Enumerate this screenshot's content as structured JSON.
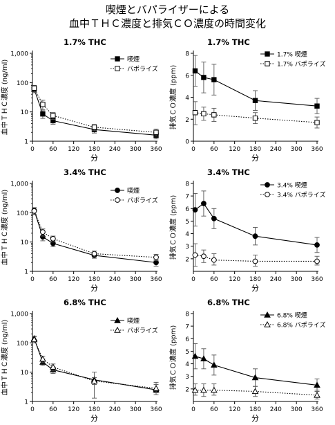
{
  "figure": {
    "title_line1": "喫煙とバパライザーによる",
    "title_line2": "血中ＴＨＣ濃度と排気ＣＯ濃度の時間変化"
  },
  "chart_data": [
    {
      "id": "thc-1-7",
      "type": "line",
      "title": "1.7% THC",
      "xlabel": "分",
      "ylabel": "血中ＴＨＣ濃度 (ng/ml)",
      "yscale": "log",
      "ylim": [
        1,
        1000
      ],
      "xlim": [
        0,
        360
      ],
      "x_ticks": [
        0,
        60,
        120,
        180,
        240,
        300,
        360
      ],
      "y_ticks": [
        1,
        10,
        100,
        1000
      ],
      "y_tick_labels": [
        "1",
        "10",
        "100",
        "1,000"
      ],
      "legend_position": "top-right",
      "series": [
        {
          "name": "喫煙",
          "marker": "filled-square",
          "line": "solid",
          "x": [
            5,
            30,
            60,
            180,
            360
          ],
          "y": [
            60,
            8.5,
            5,
            2.5,
            1.6
          ],
          "err_low": [
            45,
            6,
            3.8,
            1.9,
            1.2
          ],
          "err_high": [
            75,
            11,
            6.5,
            3.2,
            2.1
          ]
        },
        {
          "name": "バポライズ",
          "marker": "open-square",
          "line": "dotted",
          "x": [
            5,
            30,
            60,
            180,
            360
          ],
          "y": [
            65,
            18,
            7.5,
            3,
            2
          ],
          "err_low": [
            48,
            12,
            5.5,
            2.3,
            1.5
          ],
          "err_high": [
            80,
            25,
            9.5,
            3.7,
            2.6
          ]
        }
      ]
    },
    {
      "id": "co-1-7",
      "type": "line",
      "title": "1.7% THC",
      "xlabel": "分",
      "ylabel": "排気ＣＯ濃度 (ppm)",
      "ylim": [
        0,
        8
      ],
      "xlim": [
        0,
        360
      ],
      "x_ticks": [
        0,
        60,
        120,
        180,
        240,
        300,
        360
      ],
      "y_ticks": [
        0,
        2,
        4,
        6,
        8
      ],
      "legend_position": "top-right",
      "series": [
        {
          "name": "1.7% 喫煙",
          "marker": "filled-square",
          "line": "solid",
          "x": [
            5,
            30,
            60,
            180,
            360
          ],
          "y": [
            6.4,
            5.8,
            5.6,
            3.7,
            3.2
          ],
          "err_low": [
            5,
            4.4,
            4.2,
            2.8,
            2.5
          ],
          "err_high": [
            7.8,
            7.2,
            7,
            4.6,
            3.9
          ]
        },
        {
          "name": "1.7% バポライズ",
          "marker": "open-square",
          "line": "dotted",
          "x": [
            5,
            30,
            60,
            180,
            360
          ],
          "y": [
            2.6,
            2.5,
            2.4,
            2.1,
            1.7
          ],
          "err_low": [
            1.5,
            1.9,
            1.8,
            1.6,
            1.2
          ],
          "err_high": [
            3.6,
            3.1,
            3,
            2.6,
            2.2
          ]
        }
      ]
    },
    {
      "id": "thc-3-4",
      "type": "line",
      "title": "3.4% THC",
      "xlabel": "分",
      "ylabel": "血中ＴＨＣ濃度 (ng/ml)",
      "yscale": "log",
      "ylim": [
        1,
        1000
      ],
      "xlim": [
        0,
        360
      ],
      "x_ticks": [
        0,
        60,
        120,
        180,
        240,
        300,
        360
      ],
      "y_ticks": [
        1,
        10,
        100,
        1000
      ],
      "y_tick_labels": [
        "1",
        "10",
        "100",
        "1,000"
      ],
      "legend_position": "top-right",
      "series": [
        {
          "name": "喫煙",
          "marker": "filled-circle",
          "line": "solid",
          "x": [
            5,
            30,
            60,
            180,
            360
          ],
          "y": [
            120,
            15,
            9,
            3.5,
            2
          ],
          "err_low": [
            90,
            11,
            7,
            2.8,
            1.5
          ],
          "err_high": [
            150,
            20,
            11,
            4.3,
            2.6
          ]
        },
        {
          "name": "バポライズ",
          "marker": "open-circle",
          "line": "dotted",
          "x": [
            5,
            30,
            60,
            180,
            360
          ],
          "y": [
            115,
            22,
            13,
            4,
            3
          ],
          "err_low": [
            85,
            16,
            10,
            3.1,
            2.3
          ],
          "err_high": [
            145,
            28,
            16,
            4.9,
            3.8
          ]
        }
      ]
    },
    {
      "id": "co-3-4",
      "type": "line",
      "title": "3.4% THC",
      "xlabel": "分",
      "ylabel": "排気ＣＯ濃度 (ppm)",
      "ylim": [
        1,
        8
      ],
      "xlim": [
        0,
        360
      ],
      "x_ticks": [
        0,
        60,
        120,
        180,
        240,
        300,
        360
      ],
      "y_ticks": [
        2,
        3,
        4,
        5,
        6,
        7,
        8
      ],
      "legend_position": "top-right",
      "series": [
        {
          "name": "3.4% 喫煙",
          "marker": "filled-circle",
          "line": "solid",
          "x": [
            5,
            30,
            60,
            180,
            360
          ],
          "y": [
            5.9,
            6.4,
            5.2,
            3.8,
            3.1
          ],
          "err_low": [
            4.6,
            5.4,
            4.4,
            3.1,
            2.5
          ],
          "err_high": [
            7.2,
            7.4,
            6,
            4.5,
            3.7
          ]
        },
        {
          "name": "3.4% バポライズ",
          "marker": "open-circle",
          "line": "dotted",
          "x": [
            5,
            30,
            60,
            180,
            360
          ],
          "y": [
            2.3,
            2.2,
            1.9,
            1.8,
            1.8
          ],
          "err_low": [
            1.4,
            1.7,
            1.5,
            1.4,
            1.5
          ],
          "err_high": [
            3.2,
            2.7,
            2.4,
            2.3,
            2.2
          ]
        }
      ]
    },
    {
      "id": "thc-6-8",
      "type": "line",
      "title": "6.8% THC",
      "xlabel": "分",
      "ylabel": "血中ＴＨＣ濃度 (ng/ml)",
      "yscale": "log",
      "ylim": [
        1,
        1000
      ],
      "xlim": [
        0,
        360
      ],
      "x_ticks": [
        0,
        60,
        120,
        180,
        240,
        300,
        360
      ],
      "y_ticks": [
        1,
        10,
        100,
        1000
      ],
      "y_tick_labels": [
        "1",
        "10",
        "100",
        "1,000"
      ],
      "legend_position": "top-right",
      "series": [
        {
          "name": "喫煙",
          "marker": "filled-triangle",
          "line": "solid",
          "x": [
            5,
            30,
            60,
            180,
            360
          ],
          "y": [
            140,
            22,
            12,
            5.5,
            2.5
          ],
          "err_low": [
            110,
            17,
            9,
            1.3,
            1.7
          ],
          "err_high": [
            170,
            28,
            15,
            10,
            4.5
          ]
        },
        {
          "name": "バポライズ",
          "marker": "open-triangle",
          "line": "dotted",
          "x": [
            5,
            30,
            60,
            180,
            360
          ],
          "y": [
            130,
            28,
            15,
            5,
            2.8
          ],
          "err_low": [
            100,
            21,
            11,
            3.8,
            2
          ],
          "err_high": [
            160,
            35,
            19,
            6.5,
            3.8
          ]
        }
      ]
    },
    {
      "id": "co-6-8",
      "type": "line",
      "title": "6.8% THC",
      "xlabel": "分",
      "ylabel": "排気ＣＯ濃度 (ppm)",
      "ylim": [
        1,
        8
      ],
      "xlim": [
        0,
        360
      ],
      "x_ticks": [
        0,
        60,
        120,
        180,
        240,
        300,
        360
      ],
      "y_ticks": [
        2,
        3,
        4,
        5,
        6,
        7,
        8
      ],
      "legend_position": "top-right",
      "series": [
        {
          "name": "6.8% 喫煙",
          "marker": "filled-triangle",
          "line": "solid",
          "x": [
            5,
            30,
            60,
            180,
            360
          ],
          "y": [
            4.6,
            4.4,
            3.9,
            2.9,
            2.3
          ],
          "err_low": [
            3.6,
            3.6,
            3.1,
            2.2,
            1.8
          ],
          "err_high": [
            5.6,
            5.2,
            4.7,
            3.6,
            2.8
          ]
        },
        {
          "name": "6.8% バポライズ",
          "marker": "open-triangle",
          "line": "dotted",
          "x": [
            5,
            30,
            60,
            180,
            360
          ],
          "y": [
            1.9,
            1.9,
            1.9,
            1.8,
            1.5
          ],
          "err_low": [
            1.5,
            1.4,
            1.5,
            1.4,
            1.2
          ],
          "err_high": [
            2.4,
            2.4,
            2.4,
            2.2,
            1.9
          ]
        }
      ]
    }
  ]
}
